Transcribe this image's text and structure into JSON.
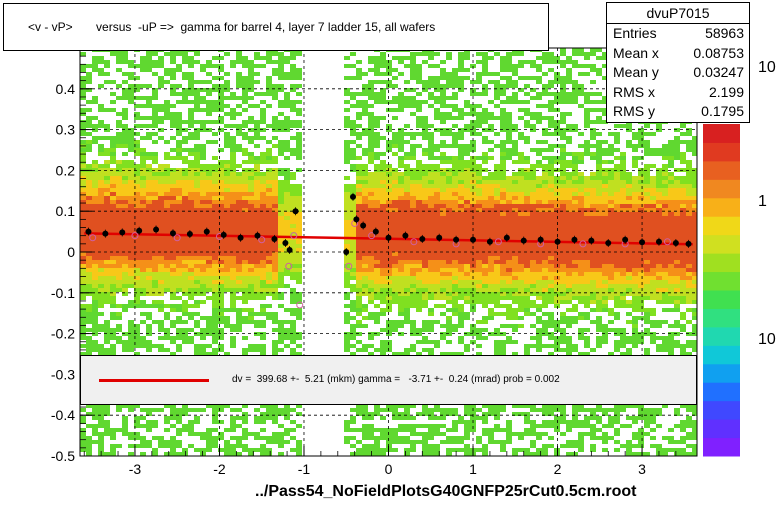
{
  "title": "<v - vP>       versus  -uP =>  gamma for barrel 4, layer 7 ladder 15, all wafers",
  "stats": {
    "name": "dvuP7015",
    "rows": [
      {
        "label": "Entries",
        "value": "58963"
      },
      {
        "label": "Mean x",
        "value": "0.08753"
      },
      {
        "label": "Mean y",
        "value": "0.03247"
      },
      {
        "label": "RMS x",
        "value": "2.199"
      },
      {
        "label": "RMS y",
        "value": "0.1795"
      }
    ]
  },
  "fit_text": "dv =  399.68 +-  5.21 (mkm) gamma =   -3.71 +-  0.24 (mrad) prob = 0.002",
  "filename": "../Pass54_NoFieldPlotsG40GNFP25rCut0.5cm.root",
  "colors": {
    "fit_line": "#e00000",
    "points": "#000000",
    "open_points": "#d060a0"
  },
  "chart_data": {
    "type": "scatter",
    "xlim": [
      -3.65,
      3.65
    ],
    "ylim": [
      -0.5,
      0.5
    ],
    "x_ticks": [
      "-3",
      "-2",
      "-1",
      "0",
      "1",
      "2",
      "3"
    ],
    "y_ticks": [
      "-0.5",
      "-0.4",
      "-0.3",
      "-0.2",
      "-0.1",
      "0",
      "0.1",
      "0.2",
      "0.3",
      "0.4"
    ],
    "grid": true,
    "palette_labels": [
      "10",
      "1",
      "10"
    ],
    "fit_line": {
      "x": [
        -3.6,
        3.6
      ],
      "y": [
        0.0457,
        0.019
      ]
    },
    "profile_points": [
      {
        "x": -3.55,
        "y": 0.05
      },
      {
        "x": -3.35,
        "y": 0.045
      },
      {
        "x": -3.15,
        "y": 0.048
      },
      {
        "x": -2.95,
        "y": 0.052
      },
      {
        "x": -2.75,
        "y": 0.055
      },
      {
        "x": -2.55,
        "y": 0.046
      },
      {
        "x": -2.35,
        "y": 0.044
      },
      {
        "x": -2.15,
        "y": 0.05
      },
      {
        "x": -1.95,
        "y": 0.042
      },
      {
        "x": -1.75,
        "y": 0.035
      },
      {
        "x": -1.55,
        "y": 0.04
      },
      {
        "x": -1.35,
        "y": 0.032
      },
      {
        "x": -1.22,
        "y": 0.022
      },
      {
        "x": -1.17,
        "y": 0.005
      },
      {
        "x": -1.1,
        "y": 0.1
      },
      {
        "x": -0.5,
        "y": 0.0
      },
      {
        "x": -0.42,
        "y": 0.135
      },
      {
        "x": -0.38,
        "y": 0.08
      },
      {
        "x": -0.3,
        "y": 0.065
      },
      {
        "x": -0.15,
        "y": 0.05
      },
      {
        "x": 0.0,
        "y": 0.035
      },
      {
        "x": 0.2,
        "y": 0.04
      },
      {
        "x": 0.4,
        "y": 0.032
      },
      {
        "x": 0.6,
        "y": 0.035
      },
      {
        "x": 0.8,
        "y": 0.03
      },
      {
        "x": 1.0,
        "y": 0.03
      },
      {
        "x": 1.2,
        "y": 0.025
      },
      {
        "x": 1.4,
        "y": 0.035
      },
      {
        "x": 1.6,
        "y": 0.028
      },
      {
        "x": 1.8,
        "y": 0.03
      },
      {
        "x": 2.0,
        "y": 0.025
      },
      {
        "x": 2.2,
        "y": 0.03
      },
      {
        "x": 2.4,
        "y": 0.028
      },
      {
        "x": 2.6,
        "y": 0.022
      },
      {
        "x": 2.8,
        "y": 0.03
      },
      {
        "x": 3.0,
        "y": 0.024
      },
      {
        "x": 3.2,
        "y": 0.025
      },
      {
        "x": 3.4,
        "y": 0.022
      },
      {
        "x": 3.55,
        "y": 0.02
      }
    ],
    "open_points": [
      {
        "x": -3.5,
        "y": 0.035
      },
      {
        "x": -3.0,
        "y": 0.04
      },
      {
        "x": -2.5,
        "y": 0.035
      },
      {
        "x": -2.0,
        "y": 0.038
      },
      {
        "x": -1.5,
        "y": 0.03
      },
      {
        "x": -1.18,
        "y": -0.035
      },
      {
        "x": -1.12,
        "y": 0.04
      },
      {
        "x": -1.05,
        "y": -0.13
      },
      {
        "x": -0.47,
        "y": -0.035
      },
      {
        "x": -0.4,
        "y": 0.07
      },
      {
        "x": -0.2,
        "y": 0.04
      },
      {
        "x": 0.3,
        "y": 0.025
      },
      {
        "x": 0.8,
        "y": 0.02
      },
      {
        "x": 1.3,
        "y": 0.025
      },
      {
        "x": 1.8,
        "y": 0.02
      },
      {
        "x": 2.3,
        "y": 0.02
      },
      {
        "x": 2.8,
        "y": 0.02
      },
      {
        "x": 3.3,
        "y": 0.025
      }
    ]
  }
}
